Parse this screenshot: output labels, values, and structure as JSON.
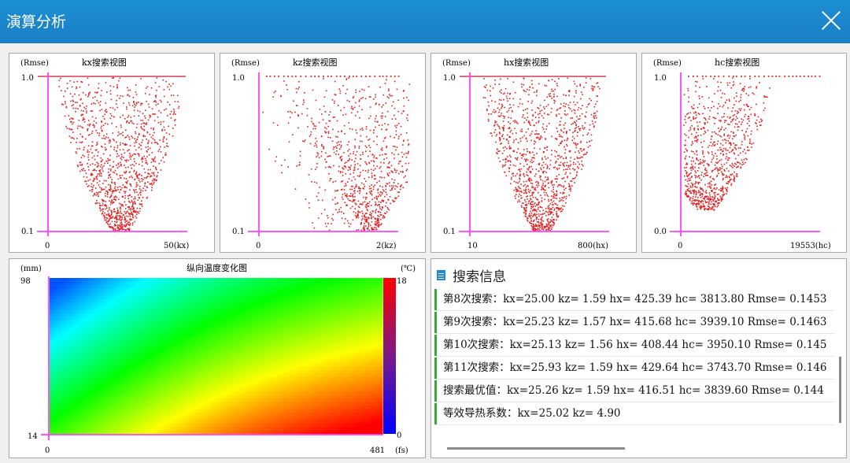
{
  "window": {
    "title": "演算分析"
  },
  "search_plots": [
    {
      "title": "kx搜索视图",
      "y_unit": "(Rmse)",
      "y_top": "1.0",
      "y_bottom": "0.1",
      "x_left": "0",
      "x_right": "50(kx)"
    },
    {
      "title": "kz搜索视图",
      "y_unit": "(Rmse)",
      "y_top": "1.0",
      "y_bottom": "0.1",
      "x_left": "0",
      "x_right": "2(kz)"
    },
    {
      "title": "hx搜索视图",
      "y_unit": "(Rmse)",
      "y_top": "1.0",
      "y_bottom": "0.1",
      "x_left": "10",
      "x_right": "800(hx)"
    },
    {
      "title": "hc搜索视图",
      "y_unit": "(Rmse)",
      "y_top": "1.0",
      "y_bottom": "0.0",
      "x_left": "0",
      "x_right": "19553(hc)"
    }
  ],
  "heatmap": {
    "title": "纵向温度变化图",
    "y_unit": "(mm)",
    "y_top": "98",
    "y_bottom": "14",
    "x_left": "0",
    "x_right": "481",
    "x_unit": "(fs)",
    "scale_unit": "(℃)",
    "scale_max": "18",
    "scale_min": "0"
  },
  "info": {
    "title": "搜索信息",
    "rows": [
      "第8次搜索：kx=25.00 kz= 1.59 hx= 425.39 hc=  3813.80 Rmse= 0.1453",
      "第9次搜索：kx=25.23 kz= 1.57 hx= 415.68 hc=  3939.10 Rmse= 0.1463",
      "第10次搜索：kx=25.13 kz= 1.56 hx= 408.44 hc=  3950.10 Rmse= 0.145",
      "第11次搜索：kx=25.93 kz= 1.59 hx= 429.64 hc=  3743.70 Rmse= 0.146",
      "搜索最优值：kx=25.26 kz= 1.59 hx= 416.51 hc=  3839.60 Rmse= 0.144",
      "等效导热系数：kx=25.02 kz= 4.90"
    ]
  },
  "colors": {
    "axis": "#ff40ff",
    "point": "#e02020",
    "accent": "#35a935",
    "titlebar": "#1a85cc"
  }
}
